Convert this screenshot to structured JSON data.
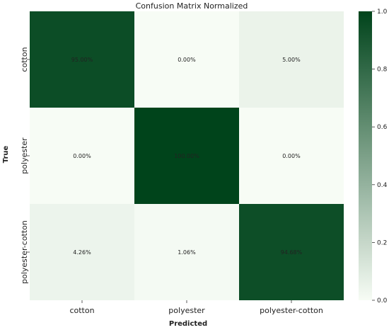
{
  "chart_data": {
    "type": "heatmap",
    "title": "Confusion Matrix Normalized",
    "xlabel": "Predicted",
    "ylabel": "True",
    "x_categories": [
      "cotton",
      "polyester",
      "polyester-cotton"
    ],
    "y_categories": [
      "cotton",
      "polyester",
      "polyester-cotton"
    ],
    "values": [
      [
        0.95,
        0.0,
        0.05
      ],
      [
        0.0,
        1.0,
        0.0
      ],
      [
        0.0426,
        0.0106,
        0.9468
      ]
    ],
    "cell_labels": [
      [
        "95.00%",
        "0.00%",
        "5.00%"
      ],
      [
        "0.00%",
        "100.00%",
        "0.00%"
      ],
      [
        "4.26%",
        "1.06%",
        "94.68%"
      ]
    ],
    "colorbar": {
      "range": [
        0,
        1
      ],
      "ticks": [
        0.0,
        0.2,
        0.4,
        0.6,
        0.8,
        1.0
      ],
      "tick_labels": [
        "0.0",
        "0.2",
        "0.4",
        "0.6",
        "0.8",
        "1.0"
      ]
    },
    "colormap": {
      "low": "#f7fcf5",
      "high": "#00441b"
    }
  }
}
